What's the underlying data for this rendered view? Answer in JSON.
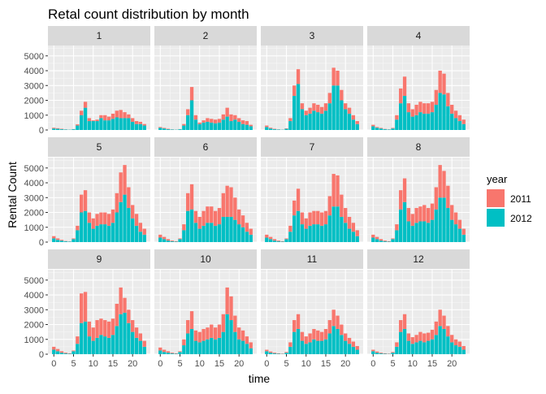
{
  "chart_data": {
    "type": "bar",
    "title": "Retal count distribution by month",
    "xlabel": "time",
    "ylabel": "Rental Count",
    "x_ticks": [
      0,
      5,
      10,
      15,
      20
    ],
    "y_ticks": [
      0,
      1000,
      2000,
      3000,
      4000,
      5000
    ],
    "ylim": [
      0,
      5700
    ],
    "stacked": true,
    "grid": true,
    "legend": {
      "title": "year",
      "position": "right",
      "items": [
        {
          "label": "2011",
          "color": "#F8766D"
        },
        {
          "label": "2012",
          "color": "#00BFC4"
        }
      ]
    },
    "x": [
      0,
      1,
      2,
      3,
      4,
      5,
      6,
      7,
      8,
      9,
      10,
      11,
      12,
      13,
      14,
      15,
      16,
      17,
      18,
      19,
      20,
      21,
      22,
      23
    ],
    "facets": [
      {
        "label": "1",
        "y2011": [
          50,
          40,
          30,
          10,
          5,
          10,
          80,
          300,
          400,
          200,
          50,
          100,
          200,
          350,
          250,
          350,
          450,
          550,
          400,
          250,
          250,
          200,
          150,
          100
        ],
        "y2012": [
          100,
          80,
          50,
          30,
          20,
          50,
          300,
          1000,
          1500,
          600,
          600,
          600,
          800,
          650,
          650,
          750,
          850,
          800,
          800,
          800,
          550,
          400,
          400,
          300
        ]
      },
      {
        "label": "2",
        "y2011": [
          50,
          40,
          30,
          10,
          5,
          10,
          100,
          400,
          900,
          300,
          100,
          150,
          250,
          250,
          250,
          250,
          350,
          600,
          450,
          300,
          250,
          250,
          250,
          100
        ],
        "y2012": [
          150,
          100,
          50,
          30,
          20,
          50,
          300,
          1000,
          2000,
          700,
          400,
          500,
          550,
          500,
          450,
          500,
          700,
          900,
          600,
          700,
          550,
          400,
          350,
          250
        ]
      },
      {
        "label": "3",
        "y2011": [
          100,
          50,
          30,
          10,
          5,
          30,
          200,
          700,
          1000,
          400,
          300,
          400,
          500,
          500,
          450,
          500,
          700,
          1200,
          1000,
          700,
          400,
          400,
          300,
          200
        ],
        "y2012": [
          200,
          100,
          50,
          30,
          20,
          80,
          600,
          2300,
          3100,
          1400,
          1000,
          1100,
          1300,
          1200,
          1100,
          1300,
          1800,
          3000,
          3000,
          2000,
          1400,
          1100,
          700,
          400
        ]
      },
      {
        "label": "4",
        "y2011": [
          100,
          50,
          40,
          20,
          10,
          40,
          300,
          1000,
          1300,
          600,
          500,
          700,
          700,
          700,
          700,
          700,
          1000,
          1500,
          1400,
          900,
          600,
          500,
          400,
          300
        ],
        "y2012": [
          250,
          150,
          100,
          50,
          30,
          100,
          700,
          1800,
          2300,
          1200,
          900,
          1000,
          1200,
          1100,
          1100,
          1200,
          1700,
          2500,
          2400,
          1600,
          1100,
          800,
          600,
          400
        ]
      },
      {
        "label": "5",
        "y2011": [
          150,
          100,
          50,
          20,
          10,
          50,
          300,
          1200,
          1400,
          700,
          700,
          800,
          800,
          800,
          800,
          900,
          1300,
          2000,
          2000,
          1400,
          900,
          800,
          600,
          400
        ],
        "y2012": [
          250,
          150,
          100,
          50,
          30,
          200,
          800,
          2000,
          2100,
          1300,
          900,
          1100,
          1200,
          1200,
          1100,
          1300,
          2000,
          2700,
          3200,
          2300,
          1600,
          1100,
          700,
          500
        ]
      },
      {
        "label": "6",
        "y2011": [
          200,
          150,
          100,
          50,
          30,
          50,
          400,
          1200,
          1700,
          800,
          800,
          1000,
          1100,
          1100,
          1000,
          1100,
          1600,
          2100,
          2000,
          1500,
          1000,
          800,
          600,
          400
        ],
        "y2012": [
          300,
          200,
          100,
          50,
          30,
          200,
          800,
          2100,
          2200,
          1300,
          900,
          1100,
          1300,
          1300,
          1100,
          1200,
          1700,
          1700,
          1700,
          1500,
          1200,
          1000,
          700,
          500
        ]
      },
      {
        "label": "7",
        "y2011": [
          200,
          150,
          100,
          50,
          30,
          50,
          400,
          1000,
          1500,
          800,
          700,
          900,
          900,
          900,
          900,
          900,
          1300,
          2200,
          2100,
          1500,
          1000,
          800,
          600,
          400
        ],
        "y2012": [
          300,
          200,
          100,
          50,
          30,
          200,
          700,
          1800,
          2100,
          1200,
          900,
          1100,
          1200,
          1200,
          1100,
          1200,
          1800,
          2400,
          2400,
          1700,
          1300,
          900,
          700,
          400
        ]
      },
      {
        "label": "8",
        "y2011": [
          200,
          150,
          100,
          50,
          30,
          50,
          400,
          1300,
          1600,
          900,
          800,
          1000,
          1000,
          1100,
          1000,
          1100,
          1500,
          2200,
          1800,
          1500,
          1000,
          800,
          600,
          400
        ],
        "y2012": [
          300,
          200,
          100,
          50,
          30,
          200,
          800,
          2200,
          2700,
          1400,
          1100,
          1300,
          1400,
          1400,
          1300,
          1500,
          2200,
          3000,
          3000,
          2300,
          1500,
          1200,
          900,
          500
        ]
      },
      {
        "label": "9",
        "y2011": [
          200,
          150,
          100,
          50,
          30,
          50,
          500,
          2000,
          2000,
          1000,
          900,
          1200,
          1100,
          1100,
          1100,
          1100,
          1500,
          1800,
          1000,
          900,
          800,
          700,
          500,
          400
        ],
        "y2012": [
          300,
          200,
          100,
          50,
          30,
          200,
          700,
          2100,
          2200,
          1200,
          900,
          1100,
          1300,
          1200,
          1100,
          1300,
          1900,
          2700,
          2800,
          2100,
          1500,
          1100,
          900,
          500
        ]
      },
      {
        "label": "10",
        "y2011": [
          200,
          150,
          100,
          50,
          30,
          50,
          400,
          900,
          1200,
          700,
          700,
          800,
          800,
          900,
          800,
          900,
          1200,
          1800,
          1600,
          1100,
          800,
          700,
          500,
          400
        ],
        "y2012": [
          250,
          150,
          100,
          50,
          30,
          150,
          600,
          1400,
          1700,
          900,
          800,
          900,
          1000,
          1100,
          1000,
          1100,
          1500,
          2700,
          2300,
          1500,
          1000,
          900,
          700,
          400
        ]
      },
      {
        "label": "11",
        "y2011": [
          100,
          80,
          50,
          30,
          20,
          50,
          300,
          800,
          1000,
          600,
          500,
          600,
          700,
          700,
          600,
          700,
          900,
          1100,
          900,
          700,
          500,
          400,
          350,
          250
        ],
        "y2012": [
          200,
          100,
          50,
          30,
          20,
          100,
          500,
          1500,
          1700,
          900,
          700,
          800,
          1000,
          900,
          900,
          1000,
          1400,
          1900,
          1700,
          1300,
          900,
          700,
          500,
          300
        ]
      },
      {
        "label": "12",
        "y2011": [
          100,
          80,
          50,
          30,
          20,
          50,
          300,
          800,
          1000,
          500,
          450,
          500,
          600,
          600,
          550,
          650,
          900,
          1100,
          900,
          700,
          500,
          400,
          350,
          250
        ],
        "y2012": [
          200,
          100,
          50,
          30,
          20,
          100,
          500,
          1500,
          1700,
          900,
          700,
          800,
          900,
          800,
          900,
          1000,
          1300,
          1900,
          1700,
          1200,
          800,
          600,
          500,
          300
        ]
      }
    ]
  }
}
